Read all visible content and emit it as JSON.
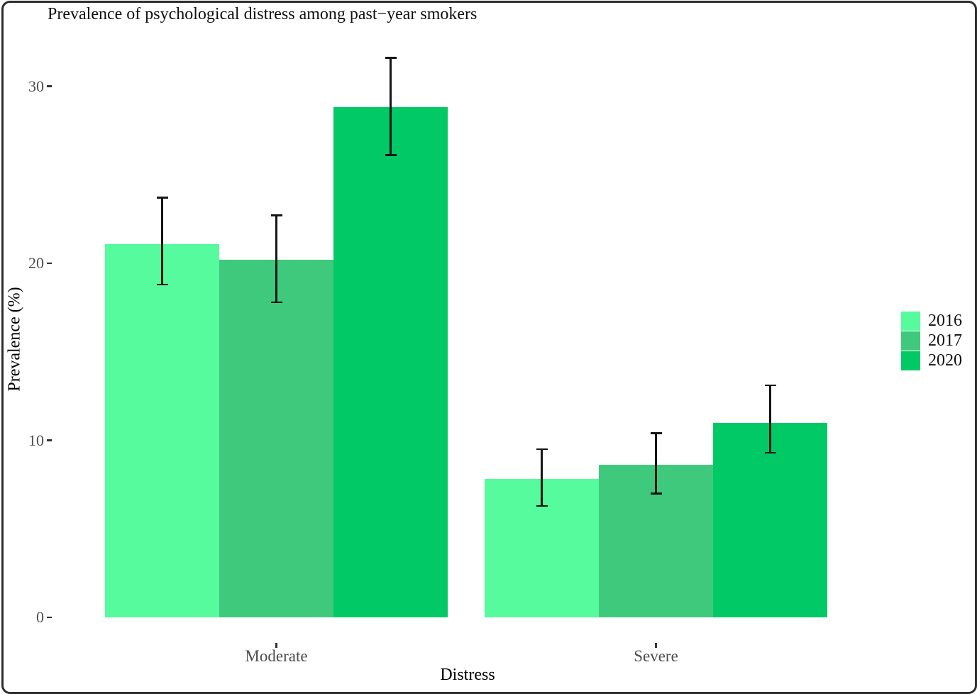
{
  "chart_data": {
    "type": "bar",
    "title": "Prevalence of psychological distress among past−year smokers",
    "xlabel": "Distress",
    "ylabel": "Prevalence (%)",
    "categories": [
      "Moderate",
      "Severe"
    ],
    "series": [
      {
        "name": "2016",
        "color": "#55FB9D",
        "values": [
          21.1,
          7.8
        ],
        "ci_low": [
          18.8,
          6.3
        ],
        "ci_high": [
          23.7,
          9.5
        ]
      },
      {
        "name": "2017",
        "color": "#3FC97C",
        "values": [
          20.2,
          8.6
        ],
        "ci_low": [
          17.8,
          7.0
        ],
        "ci_high": [
          22.7,
          10.4
        ]
      },
      {
        "name": "2020",
        "color": "#00C966",
        "values": [
          28.8,
          11.0
        ],
        "ci_low": [
          26.1,
          9.3
        ],
        "ci_high": [
          31.6,
          13.1
        ]
      }
    ],
    "y_ticks": [
      0,
      10,
      20,
      30
    ],
    "ylim": [
      0,
      33.5
    ],
    "grid": false,
    "legend_position": "right",
    "error_bars": true,
    "axis_text_color": "#4d4d4d",
    "error_bar_color": "#151515"
  }
}
